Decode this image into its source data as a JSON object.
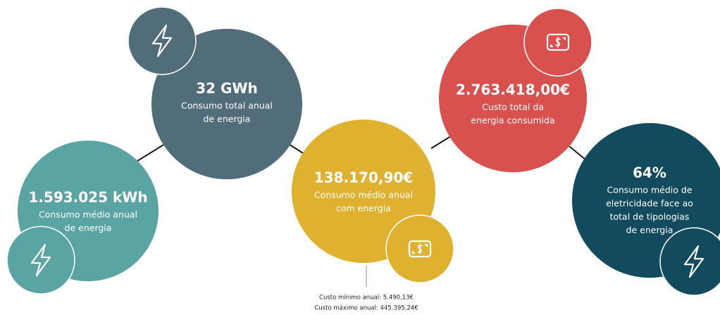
{
  "bubbles": [
    {
      "value": "1.593.025 kWh",
      "label": [
        "Consumo médio anual",
        "de energia"
      ]
    },
    {
      "value": "32 GWh",
      "label": [
        "Consumo total anual",
        "de energia"
      ]
    },
    {
      "value": "138.170,90€",
      "label": [
        "Consumo médio anual",
        "com energia"
      ]
    },
    {
      "value": "2.763.418,00€",
      "label": [
        "Custo total da",
        "energia consumida"
      ]
    },
    {
      "value": "64%",
      "label": [
        "Consumo médio de",
        "eletricidade face ao",
        "total de tipologias",
        "de energia"
      ]
    }
  ],
  "footnote": [
    "Custo mínimo anual: 5.490,13€",
    "Custo máximo anual: 445.395,24€"
  ]
}
